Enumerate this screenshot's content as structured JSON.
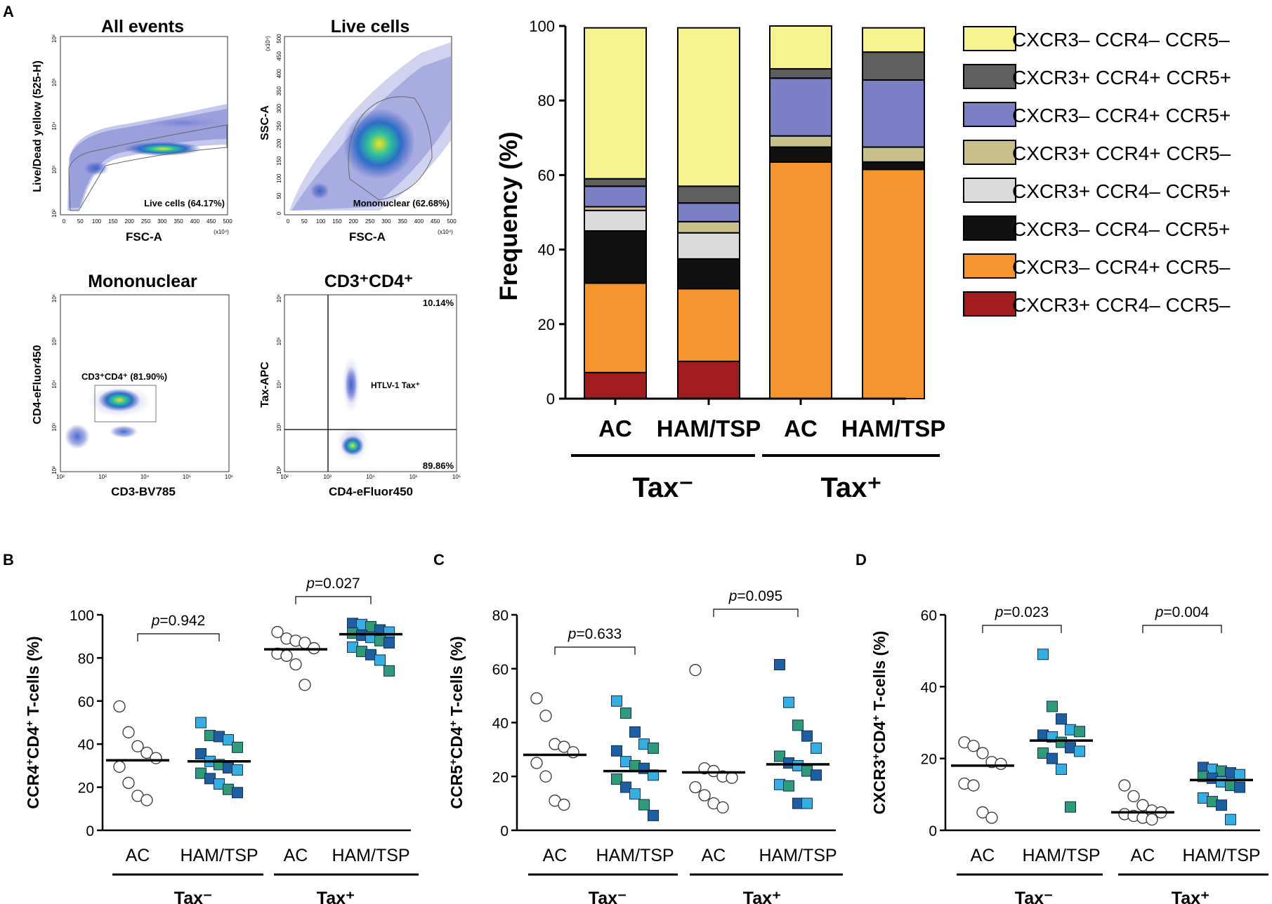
{
  "colors": {
    "yellow": "#F6F28F",
    "darkgray": "#5E5E5E",
    "lavender": "#7B7FC4",
    "khaki": "#C9BF8A",
    "lightgray": "#DADADA",
    "black": "#111111",
    "orange": "#F6952D",
    "darkred": "#A01C1F",
    "sq_dark": "#1D5FA0",
    "sq_light": "#35AEE2",
    "sq_green": "#2F9B78"
  },
  "panel_letters": {
    "A": "A",
    "B": "B",
    "C": "C",
    "D": "D"
  },
  "flow": {
    "p1": {
      "title": "All events",
      "xlabel": "FSC-A",
      "ylabel": "Live/Dead yellow (525-H)",
      "gate_label": "Live cells (64.17%)",
      "x_ticks": [
        "0",
        "50",
        "100",
        "150",
        "200",
        "250",
        "300",
        "350",
        "400",
        "450",
        "500"
      ],
      "x_unit": "(x10⁴)",
      "y_ticks": [
        "10²",
        "10³",
        "10⁴",
        "10⁵",
        "10⁶"
      ]
    },
    "p2": {
      "title": "Live cells",
      "xlabel": "FSC-A",
      "ylabel": "SSC-A",
      "gate_label": "Mononuclear (62.68%)",
      "x_ticks": [
        "0",
        "50",
        "100",
        "150",
        "200",
        "250",
        "300",
        "350",
        "400",
        "450",
        "500"
      ],
      "x_unit": "(x10⁴)",
      "y_ticks": [
        "0",
        "50",
        "100",
        "150",
        "200",
        "250",
        "300",
        "350",
        "400",
        "450",
        "500"
      ],
      "y_unit": "(x10⁴)"
    },
    "p3": {
      "title": "Mononuclear",
      "xlabel": "CD3-BV785",
      "ylabel": "CD4-eFluor450",
      "gate_label": "CD3⁺CD4⁺ (81.90%)",
      "x_ticks": [
        "10²",
        "10³",
        "10⁴",
        "10⁵",
        "10⁶"
      ],
      "y_ticks": [
        "10²",
        "10³",
        "10⁴",
        "10⁵",
        "10⁶"
      ]
    },
    "p4": {
      "title": "CD3⁺CD4⁺",
      "xlabel": "CD4-eFluor450",
      "ylabel": "Tax-APC",
      "q_top": "10.14%",
      "q_bottom": "89.86%",
      "pop_label": "HTLV-1 Tax⁺",
      "x_ticks": [
        "10²",
        "10³",
        "10⁴",
        "10⁵",
        "10⁶"
      ],
      "y_ticks": [
        "10²",
        "10³",
        "10⁴",
        "10⁵",
        "10⁶"
      ]
    }
  },
  "chart_data": [
    {
      "type": "bar",
      "stacked": true,
      "ylabel": "Frequency (%)",
      "ylim": [
        0,
        100
      ],
      "yticks": [
        "0",
        "20",
        "40",
        "60",
        "80",
        "100"
      ],
      "categories": [
        "AC",
        "HAM/TSP",
        "AC",
        "HAM/TSP"
      ],
      "groups": [
        "Tax⁻",
        "Tax⁺"
      ],
      "series": [
        {
          "name": "CXCR3+ CCR4– CCR5–",
          "color": "#A01C1F",
          "values": [
            7,
            10,
            0,
            0
          ]
        },
        {
          "name": "CXCR3– CCR4+ CCR5–",
          "color": "#F6952D",
          "values": [
            24,
            19.5,
            63.5,
            61.5
          ]
        },
        {
          "name": "CXCR3– CCR4– CCR5+",
          "color": "#111111",
          "values": [
            14,
            8,
            4,
            2
          ]
        },
        {
          "name": "CXCR3+ CCR4– CCR5+",
          "color": "#DADADA",
          "values": [
            5.5,
            7,
            0,
            0
          ]
        },
        {
          "name": "CXCR3+ CCR4+ CCR5–",
          "color": "#C9BF8A",
          "values": [
            1,
            3,
            3,
            4
          ]
        },
        {
          "name": "CXCR3– CCR4+ CCR5+",
          "color": "#7B7FC4",
          "values": [
            5.5,
            5,
            15.5,
            18
          ]
        },
        {
          "name": "CXCR3+ CCR4+ CCR5+",
          "color": "#5E5E5E",
          "values": [
            2,
            4.5,
            2.5,
            7.5
          ]
        },
        {
          "name": "CXCR3– CCR4– CCR5–",
          "color": "#F6F28F",
          "values": [
            40.5,
            42.5,
            11.5,
            6.5
          ]
        }
      ],
      "legend_order": [
        "CXCR3– CCR4– CCR5–",
        "CXCR3+ CCR4+ CCR5+",
        "CXCR3– CCR4+ CCR5+",
        "CXCR3+ CCR4+ CCR5–",
        "CXCR3+ CCR4– CCR5+",
        "CXCR3– CCR4– CCR5+",
        "CXCR3– CCR4+ CCR5–",
        "CXCR3+ CCR4– CCR5–"
      ]
    },
    {
      "type": "scatter",
      "panel": "B",
      "ylabel_main": "CCR4",
      "ylabel_sup1": "+",
      "ylabel_mid": "CD4",
      "ylabel_sup2": "+",
      "ylabel_tail": " T-cells (%)",
      "ylim": [
        0,
        100
      ],
      "yticks": [
        "0",
        "20",
        "40",
        "60",
        "80",
        "100"
      ],
      "categories": [
        "AC",
        "HAM/TSP",
        "AC",
        "HAM/TSP"
      ],
      "groups": [
        "Tax⁻",
        "Tax⁺"
      ],
      "pvalues": [
        "=0.942",
        "=0.027"
      ],
      "p_letter": "p",
      "means": [
        32.5,
        32,
        84,
        91
      ],
      "values": [
        [
          57.5,
          45.5,
          39,
          36,
          33.5,
          29.5,
          22,
          16,
          14
        ],
        [
          50,
          44,
          43.5,
          42,
          38.5,
          35.5,
          32,
          30.5,
          29,
          28,
          26.5,
          24,
          21.5,
          19,
          17.5
        ],
        [
          92,
          89,
          88,
          87,
          84.5,
          82,
          81,
          77,
          67.5
        ],
        [
          96,
          95.5,
          94.5,
          93,
          92,
          91.5,
          90.5,
          89.5,
          88,
          87,
          85,
          83,
          81.5,
          79,
          74
        ]
      ]
    },
    {
      "type": "scatter",
      "panel": "C",
      "ylabel_main": "CCR5",
      "ylabel_sup1": "+",
      "ylabel_mid": "CD4",
      "ylabel_sup2": "+",
      "ylabel_tail": " T-cells (%)",
      "ylim": [
        0,
        80
      ],
      "yticks": [
        "0",
        "20",
        "40",
        "60",
        "80"
      ],
      "categories": [
        "AC",
        "HAM/TSP",
        "AC",
        "HAM/TSP"
      ],
      "groups": [
        "Tax⁻",
        "Tax⁺"
      ],
      "pvalues": [
        "=0.633",
        "=0.095"
      ],
      "p_letter": "p",
      "means": [
        28,
        22,
        21.5,
        24.5
      ],
      "values": [
        [
          49,
          42.5,
          32,
          31,
          29,
          25,
          20,
          11,
          9.5
        ],
        [
          48,
          43.5,
          36.5,
          32,
          30.5,
          29.5,
          25.5,
          24,
          23,
          20.5,
          19,
          16,
          13.5,
          9.5,
          5.5
        ],
        [
          59.5,
          23,
          22,
          20,
          19.5,
          16,
          13,
          10,
          8.5
        ],
        [
          61.5,
          47.5,
          39,
          35,
          30.5,
          27.5,
          25,
          24,
          22,
          20.5,
          17,
          16.5,
          10,
          10
        ]
      ]
    },
    {
      "type": "scatter",
      "panel": "D",
      "ylabel_main": "CXCR3",
      "ylabel_sup1": "+",
      "ylabel_mid": "CD4",
      "ylabel_sup2": "+",
      "ylabel_tail": " T-cells (%)",
      "ylim": [
        0,
        60
      ],
      "yticks": [
        "0",
        "20",
        "40",
        "60"
      ],
      "categories": [
        "AC",
        "HAM/TSP",
        "AC",
        "HAM/TSP"
      ],
      "groups": [
        "Tax⁻",
        "Tax⁺"
      ],
      "pvalues": [
        "=0.023",
        "=0.004"
      ],
      "p_letter": "p",
      "means": [
        18,
        25,
        5,
        14
      ],
      "values": [
        [
          24.5,
          23.5,
          21.5,
          19,
          18.5,
          13,
          12.5,
          5,
          3.5
        ],
        [
          49,
          34.5,
          31,
          28,
          27.5,
          26.5,
          26,
          24.5,
          23,
          22,
          21.5,
          20,
          17,
          6.5
        ],
        [
          12.5,
          9.5,
          7,
          5.5,
          5,
          4.5,
          4,
          3.5,
          3
        ],
        [
          17.5,
          17,
          16.5,
          16,
          15.5,
          15,
          14.5,
          13.5,
          12.5,
          12,
          9,
          8,
          7,
          3
        ]
      ]
    }
  ]
}
